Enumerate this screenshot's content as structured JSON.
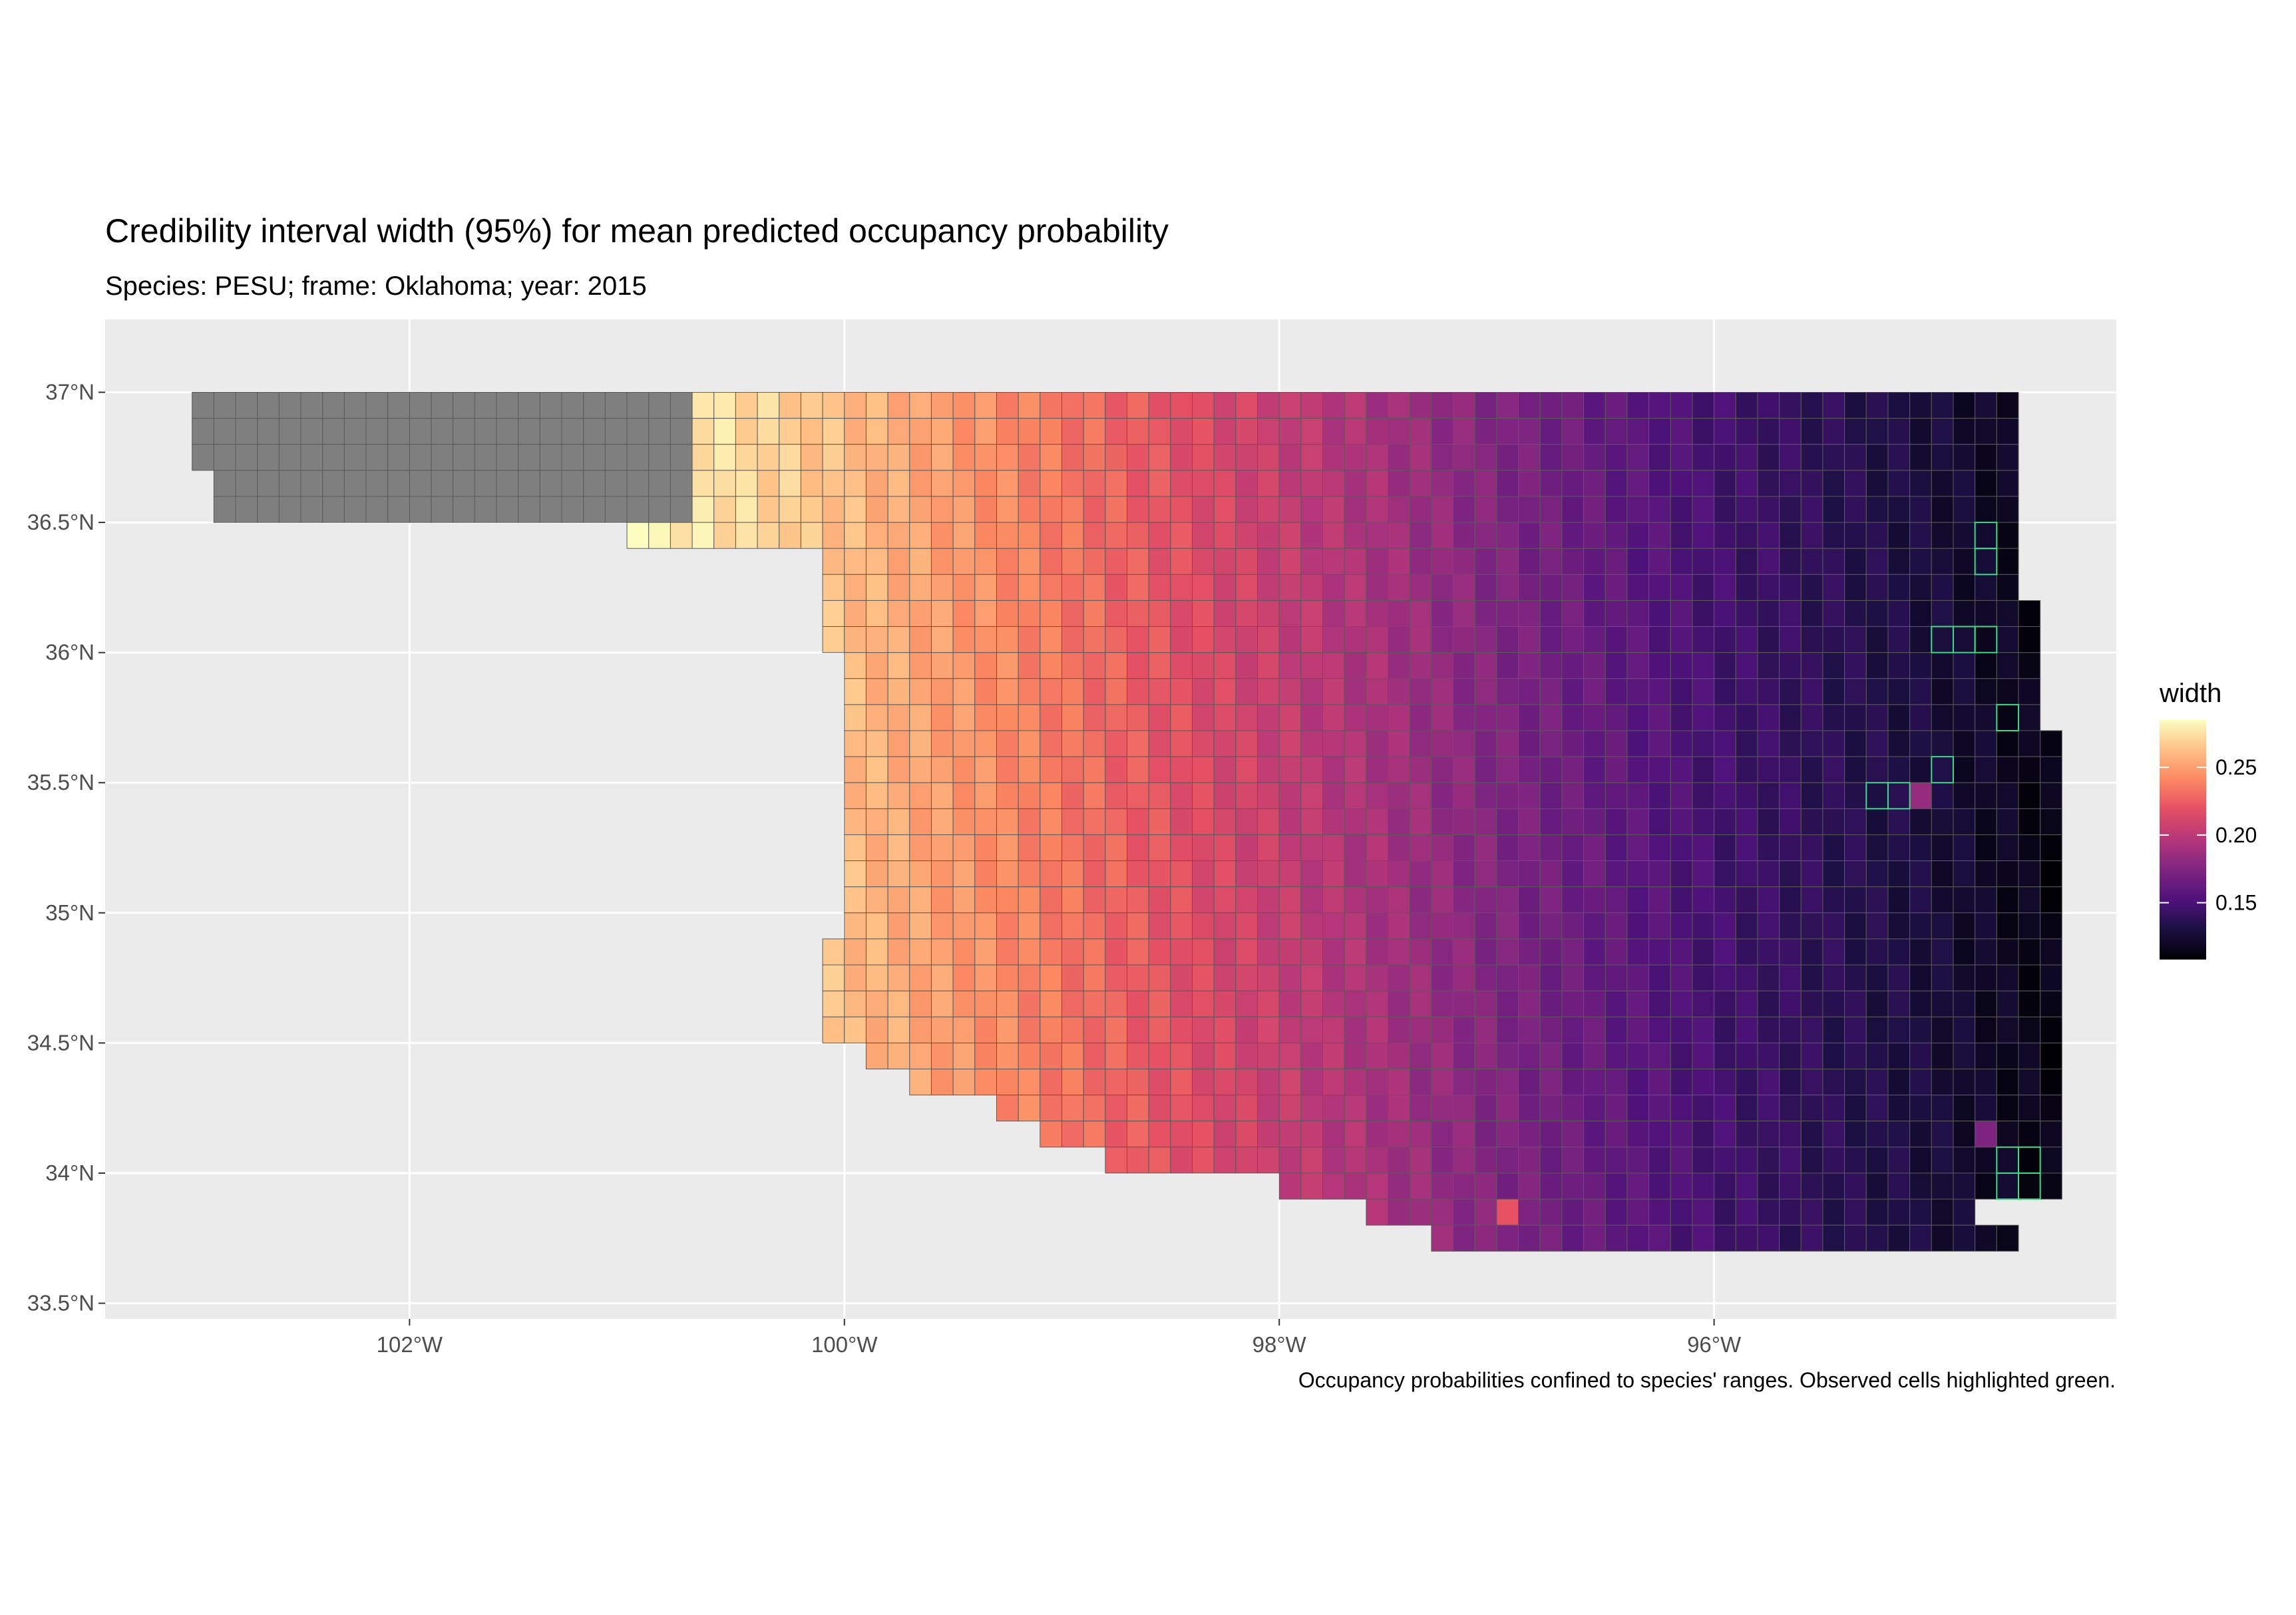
{
  "title": "Credibility interval width (95%) for mean predicted occupancy probability",
  "subtitle": "Species: PESU; frame: Oklahoma; year: 2015",
  "caption": "Occupancy probabilities confined to species' ranges. Observed cells highlighted green.",
  "colors": {
    "panel_background": "#ebebeb",
    "gridline": "#ffffff",
    "out_of_range_fill": "#7f7f7f",
    "cell_border": "#5a5a5a",
    "observed_border": "#3ddc84",
    "palette": "magma"
  },
  "chart_data": {
    "type": "heatmap",
    "grid": "on",
    "legend_position": "right",
    "legend": {
      "title": "width",
      "min": 0.108,
      "max": 0.285,
      "breaks": [
        0.15,
        0.2,
        0.25
      ],
      "break_labels": [
        "0.15",
        "0.20",
        "0.25"
      ]
    },
    "xlim": [
      -103.4,
      -94.15
    ],
    "ylim": [
      33.44,
      37.28
    ],
    "x_ticks": [
      -102,
      -100,
      -98,
      -96
    ],
    "x_tick_labels": [
      "102°W",
      "100°W",
      "98°W",
      "96°W"
    ],
    "y_ticks": [
      33.5,
      34,
      34.5,
      35,
      35.5,
      36,
      36.5,
      37
    ],
    "y_tick_labels": [
      "33.5°N",
      "34°N",
      "34.5°N",
      "35°N",
      "35.5°N",
      "36°N",
      "36.5°N",
      "37°N"
    ],
    "cell_size_deg": 0.1,
    "width_gradient": [
      {
        "lon": -101.0,
        "width": 0.285
      },
      {
        "lon": -100.0,
        "width": 0.262
      },
      {
        "lon": -99.0,
        "width": 0.235
      },
      {
        "lon": -98.0,
        "width": 0.205
      },
      {
        "lon": -97.0,
        "width": 0.175
      },
      {
        "lon": -96.0,
        "width": 0.148
      },
      {
        "lon": -95.0,
        "width": 0.128
      },
      {
        "lon": -94.4,
        "width": 0.112
      }
    ],
    "out_of_range_region": "Panhandle west of 100.7°W (grey cells, no estimate)",
    "observed_cells": [
      {
        "lon": -94.75,
        "lat": 36.45
      },
      {
        "lon": -94.75,
        "lat": 36.35
      },
      {
        "lon": -94.95,
        "lat": 36.05
      },
      {
        "lon": -94.85,
        "lat": 36.05
      },
      {
        "lon": -94.75,
        "lat": 36.05
      },
      {
        "lon": -94.65,
        "lat": 35.75
      },
      {
        "lon": -94.95,
        "lat": 35.55
      },
      {
        "lon": -95.25,
        "lat": 35.45
      },
      {
        "lon": -95.15,
        "lat": 35.45
      },
      {
        "lon": -94.65,
        "lat": 34.05
      },
      {
        "lon": -94.55,
        "lat": 34.05
      },
      {
        "lon": -94.65,
        "lat": 33.95
      },
      {
        "lon": -94.55,
        "lat": 33.95
      }
    ],
    "notable_cells": [
      {
        "lon": -96.95,
        "lat": 33.85,
        "width": 0.225
      },
      {
        "lon": -95.05,
        "lat": 35.45,
        "width": 0.19
      },
      {
        "lon": -94.75,
        "lat": 34.15,
        "width": 0.17
      }
    ]
  }
}
